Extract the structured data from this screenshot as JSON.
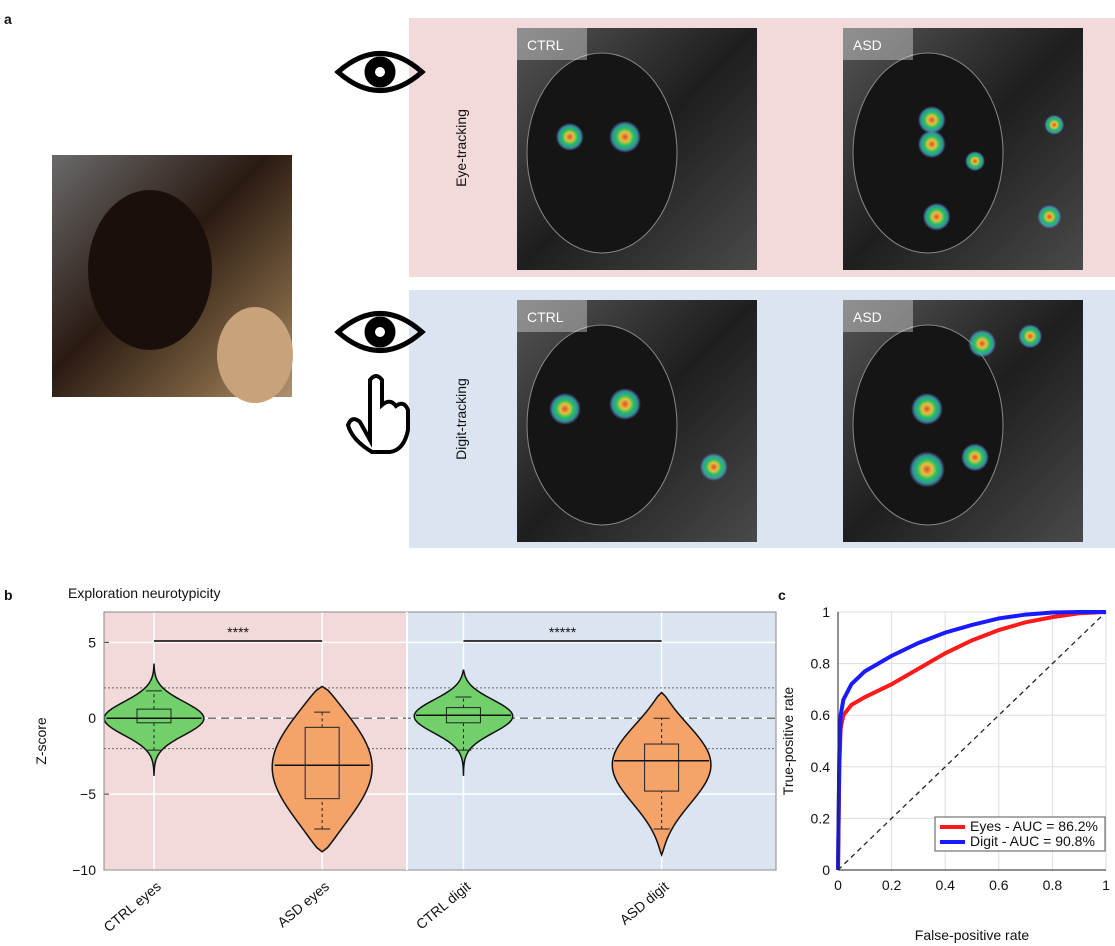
{
  "panel_a": {
    "label": "a",
    "rows": [
      {
        "name": "Eye-tracking",
        "images": [
          "CTRL",
          "ASD"
        ]
      },
      {
        "name": "Digit-tracking",
        "images": [
          "CTRL",
          "ASD"
        ]
      }
    ]
  },
  "chart_data": [
    {
      "type": "violin",
      "panel_label": "b",
      "title": "Exploration neurotypicity",
      "y_label": "Z-score",
      "categories": [
        "CTRL eyes",
        "ASD eyes",
        "CTRL digit",
        "ASD digit"
      ],
      "colors": [
        "#72d06a",
        "#f6a36a",
        "#72d06a",
        "#f6a36a"
      ],
      "extent_low": [
        -3.8,
        -8.8,
        -3.8,
        -9.0
      ],
      "extent_high": [
        3.6,
        2.1,
        3.2,
        1.7
      ],
      "whisker_low": [
        -2.1,
        -7.3,
        -2.1,
        -7.3
      ],
      "whisker_high": [
        1.8,
        0.4,
        1.4,
        0.0
      ],
      "q1": [
        -0.3,
        -5.3,
        -0.3,
        -4.8
      ],
      "median": [
        0.0,
        -3.1,
        0.2,
        -2.8
      ],
      "q3": [
        0.6,
        -0.6,
        0.7,
        -1.7
      ],
      "significance": [
        "****",
        "*****"
      ],
      "reference_lines": [
        2,
        -2
      ],
      "ylim": [
        -10,
        7
      ],
      "yticks": [
        {
          "value": -10,
          "label": "−10"
        },
        {
          "value": -5,
          "label": "−5"
        },
        0,
        5
      ]
    },
    {
      "type": "line",
      "panel_label": "c",
      "x_label": "False-positive rate",
      "y_label": "True-positive rate",
      "x": [
        0,
        0.005,
        0.01,
        0.02,
        0.05,
        0.1,
        0.2,
        0.3,
        0.4,
        0.5,
        0.6,
        0.7,
        0.8,
        0.9,
        1
      ],
      "series": [
        {
          "name": "Eyes - AUC = 86.2%",
          "color": "#ff1a1a",
          "values": [
            0,
            0.4,
            0.55,
            0.6,
            0.64,
            0.67,
            0.72,
            0.78,
            0.84,
            0.89,
            0.93,
            0.96,
            0.98,
            0.995,
            1
          ]
        },
        {
          "name": "Digit - AUC = 90.8%",
          "color": "#1a1aff",
          "values": [
            0,
            0.45,
            0.6,
            0.66,
            0.72,
            0.77,
            0.83,
            0.88,
            0.92,
            0.95,
            0.975,
            0.99,
            0.998,
            1,
            1
          ]
        }
      ],
      "xlim": [
        0,
        1
      ],
      "ylim": [
        0,
        1
      ],
      "xticks": [
        0,
        0.2,
        0.4,
        0.6,
        0.8,
        1
      ],
      "yticks": [
        0,
        0.2,
        0.4,
        0.6,
        0.8,
        1
      ],
      "grid": true,
      "legend": "lower right"
    }
  ]
}
